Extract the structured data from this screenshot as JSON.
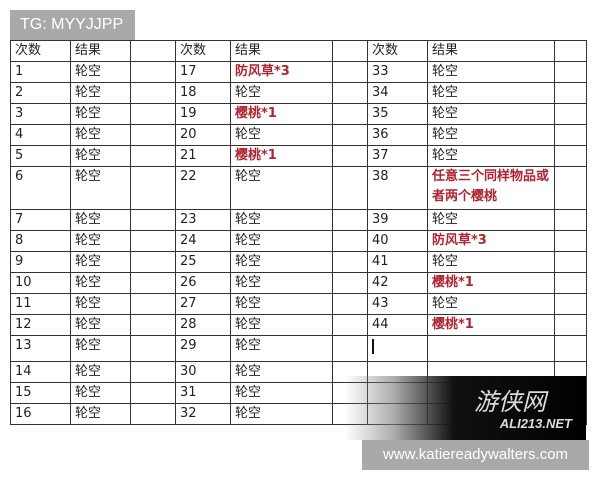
{
  "overlay": {
    "tg_label": "TG: MYYJJPP",
    "site_label": "www.katiereadywalters.com"
  },
  "watermark": {
    "logo_text": "游侠网",
    "domain": "ALI213.NET"
  },
  "colors": {
    "highlight": "#b0242f",
    "border": "#333333"
  },
  "table": {
    "headers": {
      "num": "次数",
      "result": "结果"
    },
    "rows": [
      {
        "a": [
          "1",
          "轮空",
          false
        ],
        "b": [
          "17",
          "防风草*3",
          true
        ],
        "c": [
          "33",
          "轮空",
          false
        ]
      },
      {
        "a": [
          "2",
          "轮空",
          false
        ],
        "b": [
          "18",
          "轮空",
          false
        ],
        "c": [
          "34",
          "轮空",
          false
        ]
      },
      {
        "a": [
          "3",
          "轮空",
          false
        ],
        "b": [
          "19",
          "樱桃*1",
          true
        ],
        "c": [
          "35",
          "轮空",
          false
        ]
      },
      {
        "a": [
          "4",
          "轮空",
          false
        ],
        "b": [
          "20",
          "轮空",
          false
        ],
        "c": [
          "36",
          "轮空",
          false
        ]
      },
      {
        "a": [
          "5",
          "轮空",
          false
        ],
        "b": [
          "21",
          "樱桃*1",
          true
        ],
        "c": [
          "37",
          "轮空",
          false
        ]
      },
      {
        "a": [
          "6",
          "轮空",
          false
        ],
        "b": [
          "22",
          "轮空",
          false
        ],
        "c": [
          "38",
          "任意三个同样物品或者两个樱桃",
          true
        ],
        "tall": true
      },
      {
        "a": [
          "7",
          "轮空",
          false
        ],
        "b": [
          "23",
          "轮空",
          false
        ],
        "c": [
          "39",
          "轮空",
          false
        ]
      },
      {
        "a": [
          "8",
          "轮空",
          false
        ],
        "b": [
          "24",
          "轮空",
          false
        ],
        "c": [
          "40",
          "防风草*3",
          true
        ]
      },
      {
        "a": [
          "9",
          "轮空",
          false
        ],
        "b": [
          "25",
          "轮空",
          false
        ],
        "c": [
          "41",
          "轮空",
          false
        ]
      },
      {
        "a": [
          "10",
          "轮空",
          false
        ],
        "b": [
          "26",
          "轮空",
          false
        ],
        "c": [
          "42",
          "樱桃*1",
          true
        ]
      },
      {
        "a": [
          "11",
          "轮空",
          false
        ],
        "b": [
          "27",
          "轮空",
          false
        ],
        "c": [
          "43",
          "轮空",
          false
        ]
      },
      {
        "a": [
          "12",
          "轮空",
          false
        ],
        "b": [
          "28",
          "轮空",
          false
        ],
        "c": [
          "44",
          "樱桃*1",
          true
        ]
      },
      {
        "a": [
          "13",
          "轮空",
          false
        ],
        "b": [
          "29",
          "轮空",
          false
        ],
        "c": [
          "",
          "",
          false
        ],
        "cursor": true
      },
      {
        "a": [
          "14",
          "轮空",
          false
        ],
        "b": [
          "30",
          "轮空",
          false
        ],
        "c": [
          "",
          "",
          false
        ]
      },
      {
        "a": [
          "15",
          "轮空",
          false
        ],
        "b": [
          "31",
          "轮空",
          false
        ],
        "c": [
          "",
          "",
          false
        ]
      },
      {
        "a": [
          "16",
          "轮空",
          false
        ],
        "b": [
          "32",
          "轮空",
          false
        ],
        "c": [
          "",
          "",
          false
        ]
      }
    ]
  }
}
